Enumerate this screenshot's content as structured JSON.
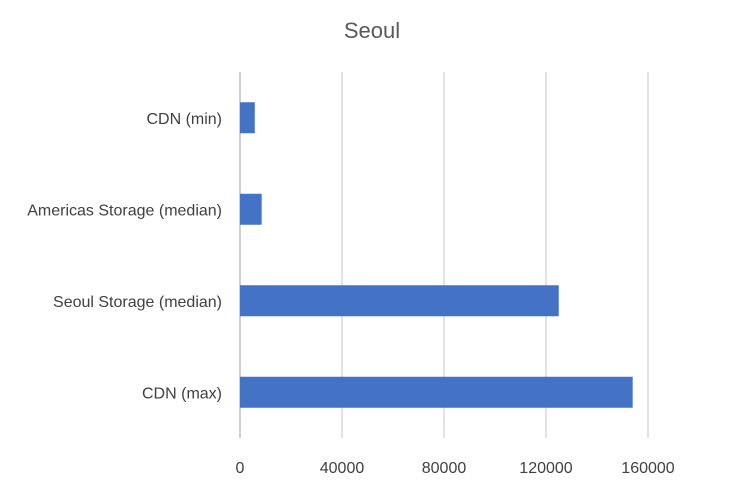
{
  "chart_data": {
    "type": "bar",
    "orientation": "horizontal",
    "title": "Seoul",
    "xlabel": "",
    "ylabel": "",
    "categories": [
      "CDN (min)",
      "Americas Storage (median)",
      "Seoul Storage (median)",
      "CDN (max)"
    ],
    "values": [
      5800,
      8500,
      125000,
      154000
    ],
    "xlim": [
      0,
      160000
    ],
    "x_ticks": [
      0,
      40000,
      80000,
      120000,
      160000
    ],
    "x_tick_labels": [
      "0",
      "40000",
      "80000",
      "120000",
      "160000"
    ],
    "grid": true,
    "legend": "none",
    "bar_color": "#4472c4"
  }
}
